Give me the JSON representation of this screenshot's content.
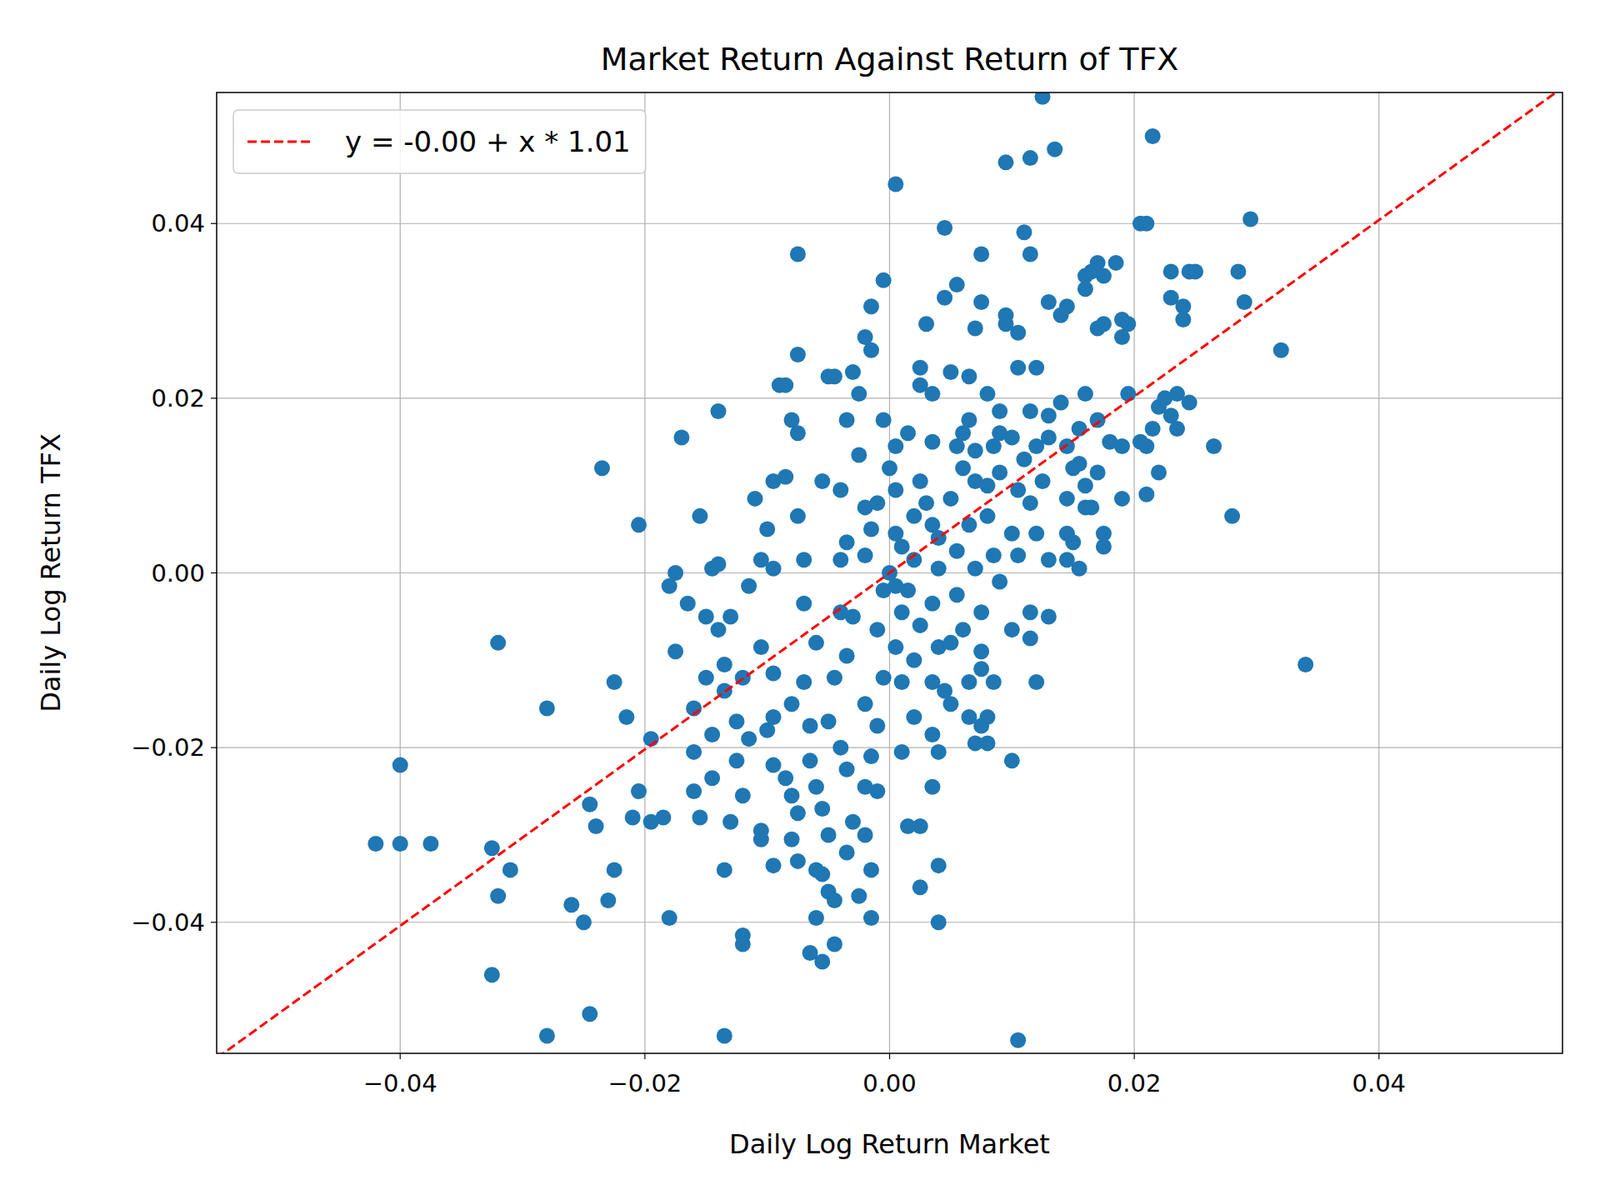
{
  "chart_data": {
    "type": "scatter",
    "title": "Market Return Against Return of TFX",
    "x_label": "Daily Log Return Market",
    "y_label": "Daily Log Return TFX",
    "color": "#1f77b4",
    "marker": "circle",
    "grid": true,
    "legend": "upper left",
    "xlim": [
      -0.055,
      0.055
    ],
    "ylim": [
      -0.055,
      0.055
    ],
    "xticks": [
      {
        "value": -0.04,
        "label": "−0.04"
      },
      {
        "value": -0.02,
        "label": "−0.02"
      },
      {
        "value": 0,
        "label": "0.00"
      },
      {
        "value": 0.02,
        "label": "0.02"
      },
      {
        "value": 0.04,
        "label": "0.04"
      }
    ],
    "yticks": [
      {
        "value": -0.04,
        "label": "−0.04"
      },
      {
        "value": -0.02,
        "label": "−0.02"
      },
      {
        "value": 0,
        "label": "0.00"
      },
      {
        "value": 0.02,
        "label": "0.02"
      },
      {
        "value": 0.04,
        "label": "0.04"
      }
    ],
    "fit": {
      "type": "line",
      "intercept": 0,
      "slope": 1.01,
      "label": "y = -0.00 + x * 1.01",
      "color": "#ff0000",
      "line_style": "dashed"
    },
    "x": [
      -0.042,
      -0.04,
      -0.04,
      -0.0375,
      -0.032,
      -0.0325,
      -0.032,
      -0.031,
      -0.0325,
      -0.028,
      -0.028,
      -0.026,
      -0.025,
      -0.0245,
      -0.024,
      -0.0245,
      -0.023,
      -0.0225,
      -0.0225,
      -0.0235,
      -0.0205,
      -0.0215,
      -0.0195,
      -0.0205,
      -0.021,
      -0.0195,
      -0.0185,
      -0.018,
      -0.018,
      -0.0175,
      -0.017,
      -0.0175,
      -0.0165,
      -0.016,
      -0.016,
      -0.0155,
      -0.016,
      -0.015,
      -0.015,
      -0.0155,
      -0.0145,
      -0.0145,
      -0.0145,
      -0.014,
      -0.014,
      -0.0135,
      -0.0135,
      -0.013,
      -0.0125,
      -0.0135,
      -0.0135,
      -0.014,
      -0.013,
      -0.012,
      -0.0115,
      -0.0115,
      -0.011,
      -0.0105,
      -0.0105,
      -0.012,
      -0.012,
      -0.0105,
      -0.0095,
      -0.0095,
      -0.0105,
      -0.0095,
      -0.0095,
      -0.01,
      -0.0095,
      -0.0085,
      -0.009,
      -0.0085,
      -0.0095,
      -0.0085,
      -0.008,
      -0.008,
      -0.008,
      -0.0075,
      -0.0075,
      -0.0075,
      -0.0075,
      -0.0075,
      -0.0075,
      -0.007,
      -0.007,
      -0.007,
      -0.0065,
      -0.0065,
      -0.006,
      -0.006,
      -0.0065,
      -0.0055,
      -0.006,
      -0.0055,
      -0.0055,
      -0.005,
      -0.005,
      -0.0045,
      -0.0045,
      -0.005,
      -0.0045,
      -0.0045,
      -0.005,
      -0.0055,
      -0.004,
      -0.004,
      -0.0035,
      -0.004,
      -0.0035,
      -0.0035,
      -0.003,
      -0.0035,
      -0.0025,
      -0.0015,
      -0.002,
      -0.0015,
      -0.002,
      -0.001,
      -0.0015,
      -0.001,
      -0.0005,
      -0.001,
      -0.0005,
      -0.0015,
      -0.002,
      -0.0025,
      -0.0035,
      -0.003,
      -0.0025,
      -0.002,
      -0.0015,
      -0.0015,
      -0.0005,
      -0.0005,
      0.0005,
      0.0005,
      0.0005,
      0.0005,
      0.0005,
      0.001,
      0.0005,
      0.001,
      0.001,
      0.0015,
      0.0025,
      0.0025,
      0.002,
      0.0025,
      0.002,
      0.002,
      0.0025,
      0.0025,
      0.0025,
      0.0035,
      0.003,
      0.0035,
      0.0035,
      0.004,
      0.0035,
      0.004,
      0.0035,
      0.0035,
      0.004,
      0.0035,
      0.004,
      0.004,
      0.0045,
      0.0045,
      0.0045,
      0.0055,
      0.005,
      0.0055,
      0.005,
      0.0055,
      0.0055,
      0.006,
      0.0065,
      0.0065,
      0.007,
      0.0075,
      0.008,
      0.008,
      0.0085,
      0.0075,
      0.0075,
      0.007,
      0.0065,
      0.007,
      0.0065,
      0.0065,
      0.007,
      0.0075,
      0.0075,
      0.008,
      0.0085,
      0.008,
      0.0085,
      0.009,
      0.009,
      0.009,
      0.0095,
      0.0095,
      0.0095,
      0.0105,
      0.0105,
      0.01,
      0.0105,
      0.01,
      0.0105,
      0.01,
      0.01,
      0.0105,
      0.0115,
      0.0115,
      0.012,
      0.013,
      0.0115,
      0.011,
      0.0115,
      0.012,
      0.0115,
      0.012,
      0.0115,
      0.012,
      0.013,
      0.0125,
      0.0125,
      0.013,
      0.013,
      0.0135,
      0.014,
      0.0145,
      0.014,
      0.0145,
      0.0145,
      0.0145,
      0.0145,
      0.015,
      0.0155,
      0.016,
      0.0155,
      0.0155,
      0.016,
      0.016,
      0.016,
      0.0165,
      0.017,
      0.0175,
      0.017,
      0.0175,
      0.017,
      0.017,
      0.0165,
      0.0175,
      0.0175,
      0.018,
      0.0185,
      0.019,
      0.019,
      0.0195,
      0.019,
      0.0195,
      0.019,
      0.0205,
      0.021,
      0.0205,
      0.021,
      0.0215,
      0.021,
      0.022,
      0.022,
      0.0215,
      0.0225,
      0.0235,
      0.023,
      0.0235,
      0.0245,
      0.023,
      0.023,
      0.024,
      0.024,
      0.0245,
      0.025,
      0.0265,
      0.028,
      0.0285,
      0.029,
      0.0295,
      0.032,
      0.034,
      -0.002,
      0,
      0.001,
      0.0015,
      -0.003,
      0.003,
      0.006,
      0.008,
      0.004,
      -0.006,
      -0.008,
      -0.01,
      0.002,
      -0.002,
      0.005,
      0.009,
      0.011,
      0.013,
      0.006,
      -0.004,
      -0.012,
      -0.0125,
      0.015,
      0.016,
      0.007,
      0,
      -0.001,
      0.0015,
      0.005,
      0.0075
    ],
    "values": [
      -0.031,
      -0.031,
      -0.022,
      -0.031,
      -0.008,
      -0.0315,
      -0.037,
      -0.034,
      -0.046,
      -0.053,
      -0.0155,
      -0.038,
      -0.04,
      -0.0265,
      -0.029,
      -0.0505,
      -0.0375,
      -0.034,
      -0.0125,
      0.012,
      0.0055,
      -0.0165,
      -0.019,
      -0.025,
      -0.028,
      -0.0285,
      -0.028,
      -0.0395,
      -0.0015,
      0.0,
      0.0155,
      -0.009,
      -0.0035,
      -0.0205,
      -0.025,
      -0.028,
      -0.0155,
      -0.012,
      -0.005,
      0.0065,
      0.0005,
      -0.0185,
      -0.0235,
      0.001,
      -0.0065,
      -0.0105,
      -0.0135,
      -0.005,
      -0.0215,
      -0.034,
      -0.053,
      0.0185,
      -0.0285,
      -0.0255,
      -0.0015,
      -0.019,
      0.0085,
      -0.0305,
      -0.0295,
      -0.0415,
      -0.0425,
      0.0015,
      0.0005,
      -0.0335,
      -0.0085,
      -0.0115,
      -0.0165,
      0.005,
      -0.022,
      -0.0235,
      0.0215,
      0.0215,
      0.0105,
      0.011,
      0.0175,
      -0.0255,
      -0.0305,
      -0.0275,
      -0.033,
      0.0365,
      0.025,
      0.016,
      0.0065,
      0.0015,
      -0.0035,
      -0.0125,
      -0.0175,
      -0.0215,
      -0.0245,
      -0.0395,
      -0.0435,
      -0.0445,
      -0.034,
      -0.0345,
      -0.027,
      -0.03,
      -0.0365,
      -0.0425,
      -0.0375,
      -0.017,
      -0.012,
      0.0225,
      0.0225,
      0.0105,
      0.0095,
      0.0015,
      0.0035,
      -0.0045,
      -0.0095,
      -0.0225,
      -0.0285,
      -0.032,
      -0.037,
      -0.0395,
      -0.03,
      -0.034,
      -0.0245,
      -0.025,
      -0.021,
      -0.0175,
      -0.012,
      -0.0065,
      -0.002,
      0.005,
      0.0075,
      0.0135,
      0.0175,
      0.023,
      0.0205,
      0.027,
      0.0255,
      0.0305,
      0.0335,
      0.0175,
      0.0145,
      0.0445,
      0.0095,
      0.0045,
      -0.0015,
      -0.0045,
      -0.0085,
      -0.0125,
      -0.0205,
      -0.029,
      -0.029,
      -0.036,
      -0.0165,
      -0.006,
      0.0015,
      0.0065,
      0.0105,
      0.0215,
      0.0235,
      0.0205,
      0.0285,
      0.015,
      0.0055,
      0.0005,
      -0.0035,
      -0.0085,
      -0.0125,
      -0.0185,
      -0.0205,
      -0.0245,
      -0.0335,
      -0.04,
      -0.0135,
      0.0315,
      0.0395,
      0.033,
      0.023,
      0.0145,
      0.0085,
      0.0025,
      -0.0025,
      -0.0065,
      -0.0125,
      -0.0165,
      -0.0195,
      -0.0175,
      -0.0165,
      -0.0195,
      -0.0125,
      -0.009,
      -0.0045,
      0.0005,
      0.0055,
      0.0105,
      0.0175,
      0.0225,
      0.028,
      0.031,
      0.0365,
      0.0205,
      0.0145,
      0.0065,
      0.002,
      -0.001,
      0.0115,
      0.0185,
      0.0295,
      0.0285,
      0.047,
      0.0275,
      0.0235,
      0.0155,
      0.0095,
      0.0045,
      0.002,
      -0.0065,
      -0.0215,
      -0.0535,
      -0.0045,
      -0.0075,
      -0.0125,
      -0.005,
      0.0475,
      0.039,
      0.0365,
      0.0235,
      0.0185,
      0.0145,
      0.008,
      0.0045,
      0.0015,
      0.0545,
      0.0105,
      0.0155,
      0.031,
      0.0485,
      0.0295,
      0.0305,
      0.0195,
      0.0145,
      0.0085,
      0.0045,
      0.0015,
      0.0035,
      0.0005,
      0.0075,
      0.0125,
      0.0165,
      0.0205,
      0.0325,
      0.034,
      0.0345,
      0.0355,
      0.034,
      0.028,
      0.0285,
      0.0175,
      0.0115,
      0.0075,
      0.0045,
      0.003,
      0.015,
      0.0355,
      0.029,
      0.027,
      0.0285,
      0.0145,
      0.0205,
      0.0085,
      0.04,
      0.04,
      0.015,
      0.0145,
      0.0165,
      0.009,
      0.0115,
      0.019,
      0.05,
      0.02,
      0.0205,
      0.018,
      0.0165,
      0.0195,
      0.0315,
      0.0345,
      0.0305,
      0.029,
      0.0345,
      0.0345,
      0.0145,
      0.0065,
      0.0345,
      0.031,
      0.0405,
      0.0255,
      -0.0105,
      0.002,
      0,
      0.003,
      -0.002,
      -0.005,
      0.008,
      0.012,
      0.01,
      0.004,
      -0.008,
      -0.015,
      -0.018,
      -0.01,
      -0.015,
      -0.008,
      0.016,
      0.013,
      0.018,
      0.016,
      -0.02,
      -0.012,
      -0.017,
      0.012,
      0.01,
      0.014,
      0.012,
      0.008,
      0.016,
      -0.015,
      -0.011
    ]
  }
}
